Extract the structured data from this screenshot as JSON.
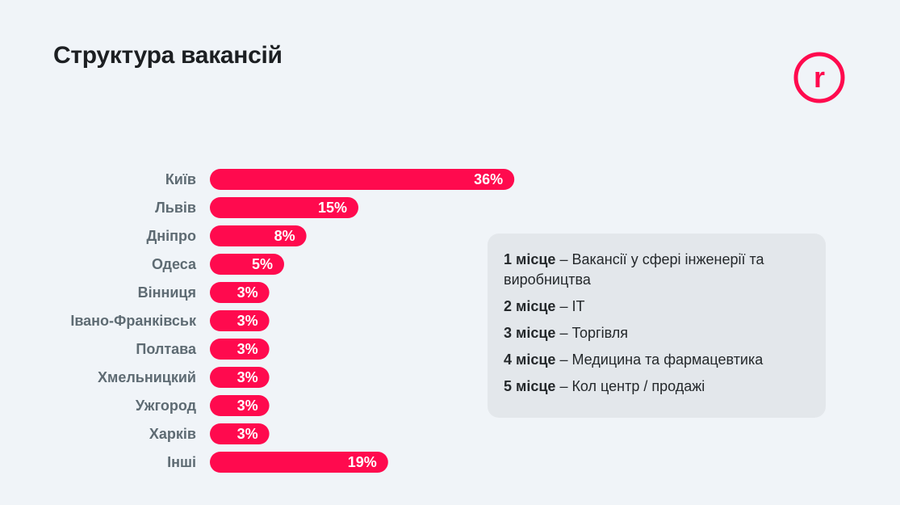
{
  "title": "Структура вакансій",
  "logo": {
    "letter": "r",
    "color": "#ff0a4e"
  },
  "colors": {
    "bar": "#ff0a4e",
    "label": "#5e6b73",
    "background": "#f0f4f8"
  },
  "chart_data": {
    "type": "bar",
    "orientation": "horizontal",
    "categories": [
      "Київ",
      "Львів",
      "Дніпро",
      "Одеса",
      "Вінниця",
      "Івано-Франківськ",
      "Полтава",
      "Хмельницкий",
      "Ужгород",
      "Харків",
      "Інші"
    ],
    "values": [
      36,
      15,
      8,
      5,
      3,
      3,
      3,
      3,
      3,
      3,
      19
    ],
    "value_labels": [
      "36%",
      "15%",
      "8%",
      "5%",
      "3%",
      "3%",
      "3%",
      "3%",
      "3%",
      "3%",
      "19%"
    ],
    "unit": "%",
    "grid": false
  },
  "ranking": [
    {
      "place": "1 місце",
      "text": "– Вакансії у сфері інженерії та виробництва"
    },
    {
      "place": "2 місце",
      "text": "– IT"
    },
    {
      "place": "3 місце",
      "text": "– Торгівля"
    },
    {
      "place": "4 місце",
      "text": "– Медицина та фармацевтика"
    },
    {
      "place": "5 місце",
      "text": "– Кол центр / продажі"
    }
  ]
}
